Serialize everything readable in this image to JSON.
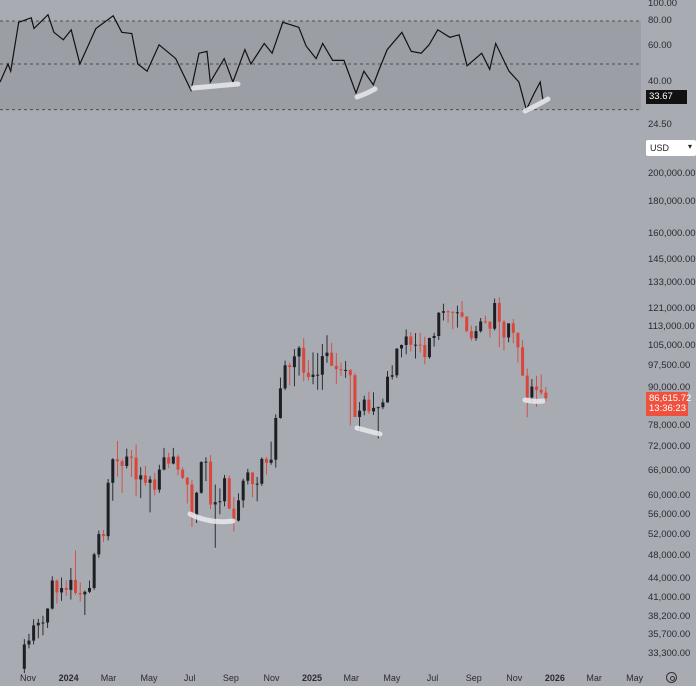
{
  "colors": {
    "background": "#a9abb3",
    "rsi_band": "#9c9ea6",
    "up": "#1e1f24",
    "down": "#d9473a",
    "rsi_line": "#111111",
    "price_badge": "#f0513f",
    "highlight": "#e8e9ee"
  },
  "currency_selector": {
    "value": "USD",
    "icon": "chevron-down-icon"
  },
  "settings_icon": "gear-icon",
  "chart_data": [
    {
      "type": "line",
      "pane": "RSI",
      "y_ticks": [
        "100.00",
        "80.00",
        "60.00",
        "40.00",
        "24.50"
      ],
      "y_tick_values": [
        100,
        80,
        60,
        40,
        24.5
      ],
      "bands": [
        80,
        50,
        30
      ],
      "current_value": "33.67",
      "points": [
        [
          "2023-09-20",
          40
        ],
        [
          "2023-10-02",
          50
        ],
        [
          "2023-10-06",
          46
        ],
        [
          "2023-10-18",
          79
        ],
        [
          "2023-11-06",
          83
        ],
        [
          "2023-11-10",
          74
        ],
        [
          "2023-12-01",
          86
        ],
        [
          "2023-12-10",
          71
        ],
        [
          "2023-12-24",
          65
        ],
        [
          "2024-01-05",
          73
        ],
        [
          "2024-01-18",
          50
        ],
        [
          "2024-02-11",
          74
        ],
        [
          "2024-03-08",
          85
        ],
        [
          "2024-03-21",
          71
        ],
        [
          "2024-04-05",
          70
        ],
        [
          "2024-04-14",
          50
        ],
        [
          "2024-04-28",
          46
        ],
        [
          "2024-05-16",
          61
        ],
        [
          "2024-06-10",
          53
        ],
        [
          "2024-07-03",
          37
        ],
        [
          "2024-07-15",
          56
        ],
        [
          "2024-07-27",
          57
        ],
        [
          "2024-08-01",
          40
        ],
        [
          "2024-08-22",
          53
        ],
        [
          "2024-09-04",
          40
        ],
        [
          "2024-09-22",
          58
        ],
        [
          "2024-10-01",
          50
        ],
        [
          "2024-10-21",
          62
        ],
        [
          "2024-11-02",
          56
        ],
        [
          "2024-11-18",
          79
        ],
        [
          "2024-12-12",
          75
        ],
        [
          "2024-12-23",
          60
        ],
        [
          "2025-01-07",
          53
        ],
        [
          "2025-01-17",
          62
        ],
        [
          "2025-02-01",
          52
        ],
        [
          "2025-02-18",
          52
        ],
        [
          "2025-03-08",
          36
        ],
        [
          "2025-03-20",
          46
        ],
        [
          "2025-04-03",
          39
        ],
        [
          "2025-04-12",
          47
        ],
        [
          "2025-04-24",
          58
        ],
        [
          "2025-05-16",
          71
        ],
        [
          "2025-05-30",
          57
        ],
        [
          "2025-06-14",
          56
        ],
        [
          "2025-06-26",
          61
        ],
        [
          "2025-07-09",
          73
        ],
        [
          "2025-07-27",
          67
        ],
        [
          "2025-08-10",
          69
        ],
        [
          "2025-08-22",
          49
        ],
        [
          "2025-09-13",
          56
        ],
        [
          "2025-09-25",
          47
        ],
        [
          "2025-10-04",
          62
        ],
        [
          "2025-10-24",
          46
        ],
        [
          "2025-11-08",
          40
        ],
        [
          "2025-11-19",
          30
        ],
        [
          "2025-12-01",
          36
        ],
        [
          "2025-12-10",
          40
        ],
        [
          "2025-12-14",
          33.67
        ]
      ]
    },
    {
      "type": "candlestick",
      "y_scale": "log",
      "currency": "USD",
      "y_ticks": [
        "200,000.00",
        "180,000.00",
        "160,000.00",
        "145,000.00",
        "133,000.00",
        "121,000.00",
        "113,000.00",
        "105,000.00",
        "97,500.00",
        "90,000.00",
        "78,000.00",
        "72,000.00",
        "66,000.00",
        "60,000.00",
        "56,000.00",
        "52,000.00",
        "48,000.00",
        "44,000.00",
        "41,000.00",
        "38,200.00",
        "35,700.00",
        "33,300.00"
      ],
      "y_tick_values": [
        200000,
        180000,
        160000,
        145000,
        133000,
        121000,
        113000,
        105000,
        97500,
        90000,
        78000,
        72000,
        66000,
        60000,
        56000,
        52000,
        48000,
        44000,
        41000,
        38200,
        35700,
        33300
      ],
      "x_ticks": [
        {
          "label": "Nov",
          "date": "2023-11-01",
          "year": false
        },
        {
          "label": "2024",
          "date": "2024-01-01",
          "year": true
        },
        {
          "label": "Mar",
          "date": "2024-03-01",
          "year": false
        },
        {
          "label": "May",
          "date": "2024-05-01",
          "year": false
        },
        {
          "label": "Jul",
          "date": "2024-07-01",
          "year": false
        },
        {
          "label": "Sep",
          "date": "2024-09-01",
          "year": false
        },
        {
          "label": "Nov",
          "date": "2024-11-01",
          "year": false
        },
        {
          "label": "2025",
          "date": "2025-01-01",
          "year": true
        },
        {
          "label": "Mar",
          "date": "2025-03-01",
          "year": false
        },
        {
          "label": "May",
          "date": "2025-05-01",
          "year": false
        },
        {
          "label": "Jul",
          "date": "2025-07-01",
          "year": false
        },
        {
          "label": "Sep",
          "date": "2025-09-01",
          "year": false
        },
        {
          "label": "Nov",
          "date": "2025-11-01",
          "year": false
        },
        {
          "label": "2026",
          "date": "2026-01-01",
          "year": true
        },
        {
          "label": "Mar",
          "date": "2026-03-01",
          "year": false
        },
        {
          "label": "May",
          "date": "2026-05-01",
          "year": false
        }
      ],
      "last_price": "86,615.72",
      "countdown": "13:36:23",
      "ohlc": [
        [
          "2023-10-23",
          31500,
          35200,
          31000,
          34500
        ],
        [
          "2023-10-30",
          34500,
          35900,
          34000,
          35000
        ],
        [
          "2023-11-06",
          35000,
          37900,
          34500,
          37050
        ],
        [
          "2023-11-13",
          37050,
          37950,
          35300,
          37400
        ],
        [
          "2023-11-20",
          37400,
          38400,
          35700,
          37450
        ],
        [
          "2023-11-27",
          37450,
          39500,
          36700,
          39450
        ],
        [
          "2023-12-04",
          39450,
          44500,
          39300,
          43800
        ],
        [
          "2023-12-11",
          43800,
          44000,
          40200,
          41900
        ],
        [
          "2023-12-18",
          41900,
          44300,
          40600,
          42600
        ],
        [
          "2023-12-25",
          42600,
          43800,
          41400,
          42300
        ],
        [
          "2024-01-01",
          42300,
          45900,
          40800,
          43900
        ],
        [
          "2024-01-08",
          43900,
          49000,
          41500,
          41800
        ],
        [
          "2024-01-15",
          41800,
          43500,
          40500,
          41600
        ],
        [
          "2024-01-22",
          41600,
          42200,
          38500,
          42000
        ],
        [
          "2024-01-29",
          42000,
          43800,
          41800,
          42600
        ],
        [
          "2024-02-05",
          42600,
          48600,
          42300,
          48300
        ],
        [
          "2024-02-12",
          48300,
          52800,
          47700,
          52100
        ],
        [
          "2024-02-19",
          52100,
          52900,
          50600,
          51700
        ],
        [
          "2024-02-26",
          51700,
          64000,
          50900,
          63100
        ],
        [
          "2024-03-04",
          63100,
          69200,
          59000,
          68900
        ],
        [
          "2024-03-11",
          68900,
          73800,
          64600,
          68400
        ],
        [
          "2024-03-18",
          68400,
          68900,
          60800,
          67200
        ],
        [
          "2024-03-25",
          67200,
          71700,
          66600,
          69600
        ],
        [
          "2024-04-01",
          69600,
          71300,
          64500,
          69300
        ],
        [
          "2024-04-08",
          69300,
          72800,
          60000,
          63900
        ],
        [
          "2024-04-15",
          63900,
          66900,
          59600,
          64900
        ],
        [
          "2024-04-22",
          64900,
          67200,
          62400,
          63100
        ],
        [
          "2024-04-29",
          63100,
          64700,
          56500,
          63900
        ],
        [
          "2024-05-06",
          63900,
          65500,
          60200,
          61500
        ],
        [
          "2024-05-13",
          61500,
          67500,
          60800,
          66300
        ],
        [
          "2024-05-20",
          66300,
          71900,
          66100,
          69400
        ],
        [
          "2024-05-27",
          69400,
          70600,
          66700,
          67800
        ],
        [
          "2024-06-03",
          67800,
          71900,
          67600,
          69600
        ],
        [
          "2024-06-10",
          69600,
          70100,
          64900,
          66300
        ],
        [
          "2024-06-17",
          66300,
          66900,
          64000,
          64300
        ],
        [
          "2024-06-24",
          64300,
          64500,
          58400,
          62700
        ],
        [
          "2024-07-01",
          62700,
          63800,
          53500,
          55900
        ],
        [
          "2024-07-08",
          55900,
          61000,
          54300,
          60800
        ],
        [
          "2024-07-15",
          60800,
          68400,
          60600,
          68200
        ],
        [
          "2024-07-22",
          68200,
          69400,
          63500,
          68300
        ],
        [
          "2024-07-29",
          68300,
          70000,
          57200,
          58200
        ],
        [
          "2024-08-05",
          58200,
          62700,
          49500,
          58700
        ],
        [
          "2024-08-12",
          58700,
          61800,
          56100,
          58900
        ],
        [
          "2024-08-19",
          58900,
          65000,
          57800,
          64200
        ],
        [
          "2024-08-26",
          64200,
          64900,
          57200,
          57300
        ],
        [
          "2024-09-02",
          57300,
          59800,
          52600,
          54800
        ],
        [
          "2024-09-09",
          54800,
          60700,
          54600,
          59100
        ],
        [
          "2024-09-16",
          59100,
          64100,
          57500,
          63600
        ],
        [
          "2024-09-23",
          63600,
          66500,
          62700,
          65600
        ],
        [
          "2024-09-30",
          65600,
          65600,
          59800,
          62800
        ],
        [
          "2024-10-07",
          62800,
          64500,
          58900,
          62900
        ],
        [
          "2024-10-14",
          62900,
          69400,
          62400,
          69000
        ],
        [
          "2024-10-21",
          69000,
          69500,
          65100,
          68000
        ],
        [
          "2024-10-28",
          68000,
          73600,
          67500,
          68800
        ],
        [
          "2024-11-04",
          68800,
          81500,
          66800,
          80400
        ],
        [
          "2024-11-11",
          80400,
          93500,
          80200,
          89800
        ],
        [
          "2024-11-18",
          89800,
          99600,
          89200,
          97900
        ],
        [
          "2024-11-25",
          97900,
          98800,
          90800,
          97200
        ],
        [
          "2024-12-02",
          97200,
          104000,
          90500,
          101200
        ],
        [
          "2024-12-09",
          101200,
          105200,
          94200,
          104500
        ],
        [
          "2024-12-16",
          104500,
          108300,
          92200,
          95200
        ],
        [
          "2024-12-23",
          95200,
          99900,
          92500,
          93700
        ],
        [
          "2024-12-30",
          93700,
          102700,
          91200,
          94500
        ],
        [
          "2025-01-06",
          94500,
          102500,
          89300,
          94500
        ],
        [
          "2025-01-13",
          94500,
          106000,
          89300,
          101300
        ],
        [
          "2025-01-20",
          101300,
          109500,
          98800,
          102600
        ],
        [
          "2025-01-27",
          102600,
          106400,
          97800,
          97700
        ],
        [
          "2025-02-03",
          97700,
          102500,
          91200,
          96500
        ],
        [
          "2025-02-10",
          96500,
          98800,
          94100,
          96100
        ],
        [
          "2025-02-17",
          96100,
          99500,
          93400,
          96200
        ],
        [
          "2025-02-24",
          96200,
          96500,
          78200,
          94300
        ],
        [
          "2025-03-03",
          94300,
          95000,
          81500,
          80700
        ],
        [
          "2025-03-10",
          80700,
          85300,
          76600,
          82600
        ],
        [
          "2025-03-17",
          82600,
          87400,
          81200,
          86100
        ],
        [
          "2025-03-24",
          86100,
          88700,
          81600,
          82400
        ],
        [
          "2025-03-31",
          82400,
          88500,
          81300,
          83500
        ],
        [
          "2025-04-07",
          83500,
          83900,
          74500,
          83700
        ],
        [
          "2025-04-14",
          83700,
          86400,
          83100,
          85200
        ],
        [
          "2025-04-21",
          85200,
          95800,
          85100,
          93800
        ],
        [
          "2025-04-28",
          93800,
          97900,
          92800,
          94300
        ],
        [
          "2025-05-05",
          94300,
          104300,
          93400,
          104200
        ],
        [
          "2025-05-12",
          104200,
          105800,
          100800,
          105600
        ],
        [
          "2025-05-19",
          105600,
          111900,
          102000,
          109000
        ],
        [
          "2025-05-26",
          109000,
          110700,
          103000,
          105700
        ],
        [
          "2025-06-02",
          105700,
          110400,
          100400,
          105700
        ],
        [
          "2025-06-09",
          105700,
          110500,
          102700,
          105600
        ],
        [
          "2025-06-16",
          105600,
          108900,
          98200,
          100900
        ],
        [
          "2025-06-23",
          100900,
          108500,
          100300,
          108400
        ],
        [
          "2025-06-30",
          108400,
          110500,
          105000,
          109200
        ],
        [
          "2025-07-07",
          109200,
          119400,
          107600,
          119100
        ],
        [
          "2025-07-14",
          119100,
          123200,
          115700,
          119800
        ],
        [
          "2025-07-21",
          119800,
          120200,
          114700,
          119500
        ],
        [
          "2025-07-28",
          119500,
          119800,
          112000,
          119100
        ],
        [
          "2025-08-04",
          119100,
          122300,
          112700,
          119300
        ],
        [
          "2025-08-11",
          119300,
          124400,
          116900,
          117400
        ],
        [
          "2025-08-18",
          117400,
          117600,
          110700,
          111200
        ],
        [
          "2025-08-25",
          111200,
          113500,
          107300,
          108300
        ],
        [
          "2025-09-01",
          108300,
          113400,
          107300,
          111200
        ],
        [
          "2025-09-08",
          111200,
          116800,
          110600,
          115300
        ],
        [
          "2025-09-15",
          115300,
          117900,
          114400,
          115200
        ],
        [
          "2025-09-22",
          115200,
          115400,
          108600,
          112200
        ],
        [
          "2025-09-29",
          112200,
          125600,
          111500,
          123500
        ],
        [
          "2025-10-06",
          123500,
          126200,
          104800,
          115100
        ],
        [
          "2025-10-13",
          115100,
          116000,
          103500,
          108600
        ],
        [
          "2025-10-20",
          108600,
          114000,
          106700,
          114500
        ],
        [
          "2025-10-27",
          114500,
          116400,
          106300,
          110500
        ],
        [
          "2025-11-03",
          110500,
          110700,
          98900,
          104700
        ],
        [
          "2025-11-10",
          104700,
          107500,
          94000,
          94200
        ],
        [
          "2025-11-17",
          94200,
          96700,
          80600,
          86800
        ],
        [
          "2025-11-24",
          86800,
          93000,
          85300,
          90400
        ],
        [
          "2025-12-01",
          90400,
          94100,
          83800,
          89300
        ],
        [
          "2025-12-08",
          89300,
          94600,
          87600,
          88400
        ],
        [
          "2025-12-15",
          88400,
          90300,
          85400,
          86615.72
        ]
      ]
    }
  ]
}
